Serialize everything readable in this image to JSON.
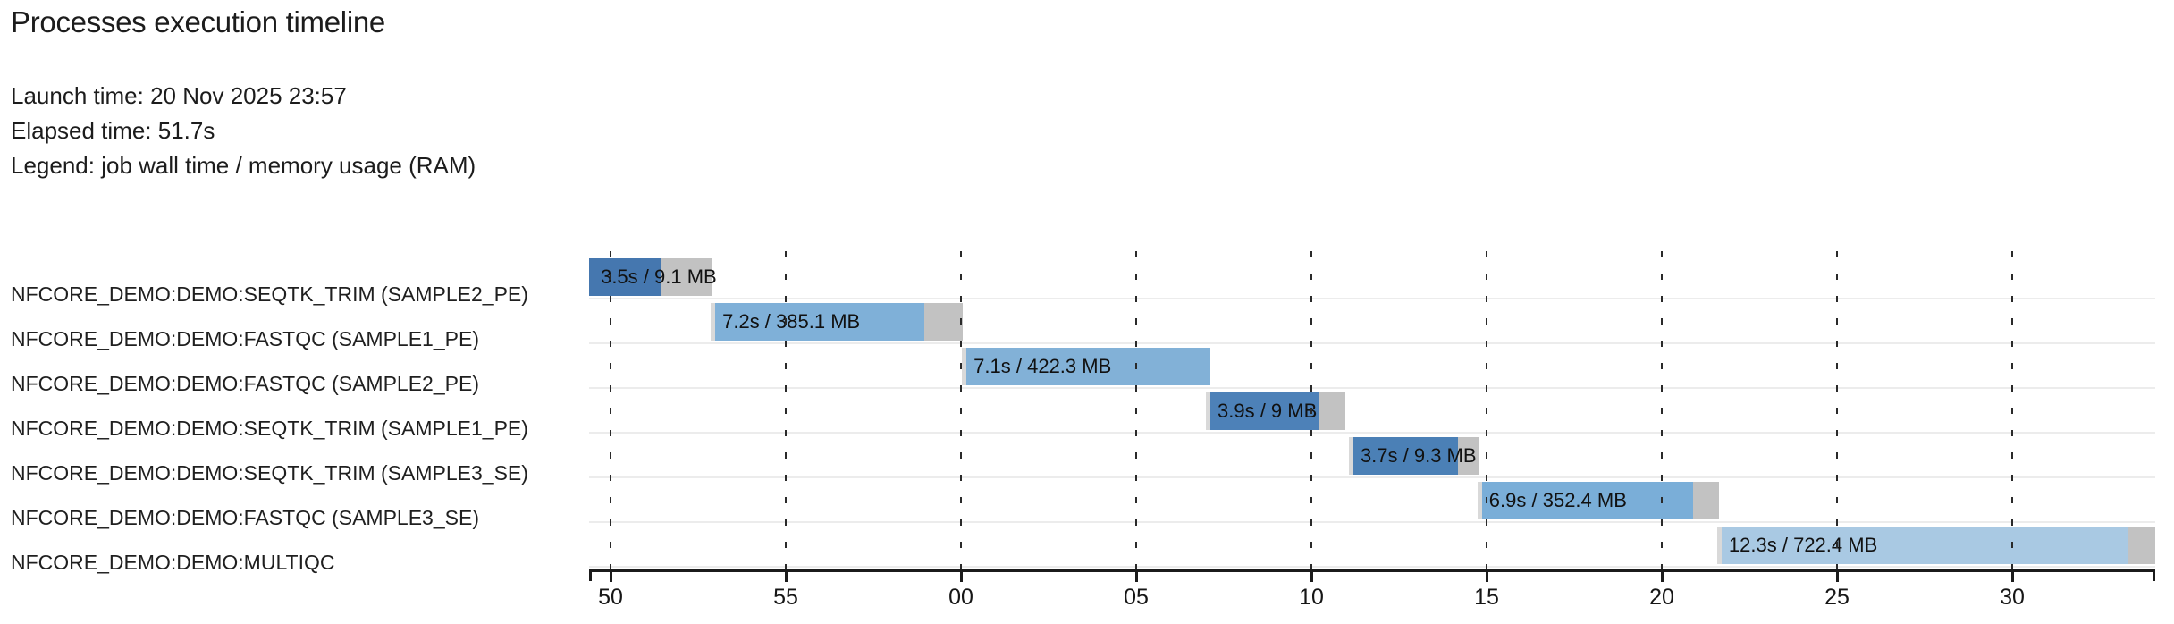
{
  "header": {
    "title": "Processes execution timeline"
  },
  "meta": {
    "launch_line": "Launch time: 20 Nov 2025 23:57",
    "elapsed_line": "Elapsed time: 51.7s",
    "legend_line": "Legend: job wall time / memory usage (RAM)"
  },
  "chart_data": {
    "type": "gantt-timeline",
    "title": "Processes execution timeline",
    "launch_time": "20 Nov 2025 23:57",
    "elapsed_time": "51.7s",
    "legend": "job wall time / memory usage (RAM)",
    "x_axis": {
      "unit": "clock seconds (:SS), wrapping from 23:57:50 through 23:58:30",
      "tick_labels": [
        "50",
        "55",
        "00",
        "05",
        "10",
        "15",
        "20",
        "25",
        "30"
      ],
      "tick_seconds": [
        50,
        55,
        60,
        65,
        70,
        75,
        80,
        85,
        90
      ],
      "domain_seconds": [
        49.4,
        94.1
      ],
      "gridlines": "vertical-dashed"
    },
    "rows": [
      {
        "process": "NFCORE_DEMO:DEMO:SEQTK_TRIM (SAMPLE2_PE)",
        "wall_time": "3.5s",
        "memory": "9.1 MB",
        "bar_label": "3.5s / 9.1 MB",
        "start_s": 49.39,
        "span_s": 3.5,
        "run_frac": 0.584,
        "lead_sliver": false,
        "color": "#4577af"
      },
      {
        "process": "NFCORE_DEMO:DEMO:FASTQC (SAMPLE1_PE)",
        "wall_time": "7.2s",
        "memory": "385.1 MB",
        "bar_label": "7.2s / 385.1 MB",
        "start_s": 52.86,
        "span_s": 7.2,
        "run_frac": 0.83,
        "lead_sliver": true,
        "color": "#7fb0d8"
      },
      {
        "process": "NFCORE_DEMO:DEMO:FASTQC (SAMPLE2_PE)",
        "wall_time": "7.1s",
        "memory": "422.3 MB",
        "bar_label": "7.1s / 422.3 MB",
        "start_s": 60.03,
        "span_s": 7.1,
        "run_frac": 0.982,
        "lead_sliver": true,
        "color": "#82b1d7"
      },
      {
        "process": "NFCORE_DEMO:DEMO:SEQTK_TRIM (SAMPLE1_PE)",
        "wall_time": "3.9s",
        "memory": "9 MB",
        "bar_label": "3.9s / 9 MB",
        "start_s": 66.99,
        "span_s": 3.98,
        "run_frac": 0.782,
        "lead_sliver": true,
        "color": "#4d81b8"
      },
      {
        "process": "NFCORE_DEMO:DEMO:SEQTK_TRIM (SAMPLE3_SE)",
        "wall_time": "3.7s",
        "memory": "9.3 MB",
        "bar_label": "3.7s / 9.3 MB",
        "start_s": 71.07,
        "span_s": 3.72,
        "run_frac": 0.801,
        "lead_sliver": true,
        "color": "#4b80b6"
      },
      {
        "process": "NFCORE_DEMO:DEMO:FASTQC (SAMPLE3_SE)",
        "wall_time": "6.9s",
        "memory": "352.4 MB",
        "bar_label": "6.9s / 352.4 MB",
        "start_s": 74.74,
        "span_s": 6.89,
        "run_frac": 0.874,
        "lead_sliver": true,
        "color": "#7aaed8"
      },
      {
        "process": "NFCORE_DEMO:DEMO:MULTIQC",
        "wall_time": "12.3s",
        "memory": "722.4 MB",
        "bar_label": "12.3s / 722.4 MB",
        "start_s": 81.58,
        "span_s": 12.5,
        "run_frac": 0.927,
        "lead_sliver": true,
        "color": "#a9c9e3"
      }
    ],
    "colors": {
      "memory_tail": "#c2c2c2",
      "lead_sliver": "#d9d9d9",
      "row_separator": "#ececec",
      "axis": "#1b1b1b",
      "text": "#1c1c1c"
    },
    "legend_position": "top-left-text",
    "grid": true
  }
}
